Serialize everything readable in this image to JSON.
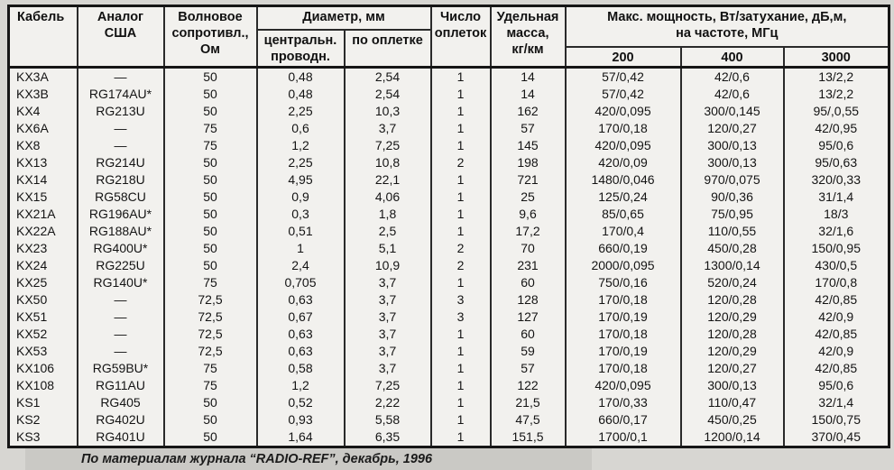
{
  "table": {
    "headers": {
      "cable": "Кабель",
      "us_analog_line1": "Аналог",
      "us_analog_line2": "США",
      "impedance_line1": "Волновое",
      "impedance_line2": "сопротивл.,",
      "impedance_line3": "Ом",
      "diameter_group": "Диаметр, мм",
      "diameter_center_line1": "центральн.",
      "diameter_center_line2": "проводн.",
      "diameter_braid": "по оплетке",
      "braid_count_line1": "Число",
      "braid_count_line2": "оплеток",
      "mass_line1": "Удельная",
      "mass_line2": "масса,",
      "mass_line3": "кг/км",
      "power_group_line1": "Макс. мощность, Вт/затухание, дБ,м,",
      "power_group_line2": "на частоте, МГц",
      "freq_200": "200",
      "freq_400": "400",
      "freq_3000": "3000"
    },
    "column_keys": [
      "cable",
      "us-analog",
      "impedance-ohm",
      "diameter-center",
      "diameter-braid",
      "braid-count",
      "mass-kg-km",
      "power-200mhz",
      "power-400mhz",
      "power-3000mhz"
    ],
    "rows": [
      [
        "KX3A",
        "—",
        "50",
        "0,48",
        "2,54",
        "1",
        "14",
        "57/0,42",
        "42/0,6",
        "13/2,2"
      ],
      [
        "KX3B",
        "RG174AU*",
        "50",
        "0,48",
        "2,54",
        "1",
        "14",
        "57/0,42",
        "42/0,6",
        "13/2,2"
      ],
      [
        "KX4",
        "RG213U",
        "50",
        "2,25",
        "10,3",
        "1",
        "162",
        "420/0,095",
        "300/0,145",
        "95/,0,55"
      ],
      [
        "KX6A",
        "—",
        "75",
        "0,6",
        "3,7",
        "1",
        "57",
        "170/0,18",
        "120/0,27",
        "42/0,95"
      ],
      [
        "KX8",
        "—",
        "75",
        "1,2",
        "7,25",
        "1",
        "145",
        "420/0,095",
        "300/0,13",
        "95/0,6"
      ],
      [
        "KX13",
        "RG214U",
        "50",
        "2,25",
        "10,8",
        "2",
        "198",
        "420/0,09",
        "300/0,13",
        "95/0,63"
      ],
      [
        "KX14",
        "RG218U",
        "50",
        "4,95",
        "22,1",
        "1",
        "721",
        "1480/0,046",
        "970/0,075",
        "320/0,33"
      ],
      [
        "KX15",
        "RG58CU",
        "50",
        "0,9",
        "4,06",
        "1",
        "25",
        "125/0,24",
        "90/0,36",
        "31/1,4"
      ],
      [
        "KX21A",
        "RG196AU*",
        "50",
        "0,3",
        "1,8",
        "1",
        "9,6",
        "85/0,65",
        "75/0,95",
        "18/3"
      ],
      [
        "KX22A",
        "RG188AU*",
        "50",
        "0,51",
        "2,5",
        "1",
        "17,2",
        "170/0,4",
        "110/0,55",
        "32/1,6"
      ],
      [
        "KX23",
        "RG400U*",
        "50",
        "1",
        "5,1",
        "2",
        "70",
        "660/0,19",
        "450/0,28",
        "150/0,95"
      ],
      [
        "KX24",
        "RG225U",
        "50",
        "2,4",
        "10,9",
        "2",
        "231",
        "2000/0,095",
        "1300/0,14",
        "430/0,5"
      ],
      [
        "KX25",
        "RG140U*",
        "75",
        "0,705",
        "3,7",
        "1",
        "60",
        "750/0,16",
        "520/0,24",
        "170/0,8"
      ],
      [
        "KX50",
        "—",
        "72,5",
        "0,63",
        "3,7",
        "3",
        "128",
        "170/0,18",
        "120/0,28",
        "42/0,85"
      ],
      [
        "KX51",
        "—",
        "72,5",
        "0,67",
        "3,7",
        "3",
        "127",
        "170/0,19",
        "120/0,29",
        "42/0,9"
      ],
      [
        "KX52",
        "—",
        "72,5",
        "0,63",
        "3,7",
        "1",
        "60",
        "170/0,18",
        "120/0,28",
        "42/0,85"
      ],
      [
        "KX53",
        "—",
        "72,5",
        "0,63",
        "3,7",
        "1",
        "59",
        "170/0,19",
        "120/0,29",
        "42/0,9"
      ],
      [
        "KX106",
        "RG59BU*",
        "75",
        "0,58",
        "3,7",
        "1",
        "57",
        "170/0,18",
        "120/0,27",
        "42/0,85"
      ],
      [
        "KX108",
        "RG11AU",
        "75",
        "1,2",
        "7,25",
        "1",
        "122",
        "420/0,095",
        "300/0,13",
        "95/0,6"
      ],
      [
        "KS1",
        "RG405",
        "50",
        "0,52",
        "2,22",
        "1",
        "21,5",
        "170/0,33",
        "110/0,47",
        "32/1,4"
      ],
      [
        "KS2",
        "RG402U",
        "50",
        "0,93",
        "5,58",
        "1",
        "47,5",
        "660/0,17",
        "450/0,25",
        "150/0,75"
      ],
      [
        "KS3",
        "RG401U",
        "50",
        "1,64",
        "6,35",
        "1",
        "151,5",
        "1700/0,1",
        "1200/0,14",
        "370/0,45"
      ]
    ]
  },
  "footer": {
    "text": "По материалам журнала “RADIO-REF”, декабрь, 1996"
  }
}
